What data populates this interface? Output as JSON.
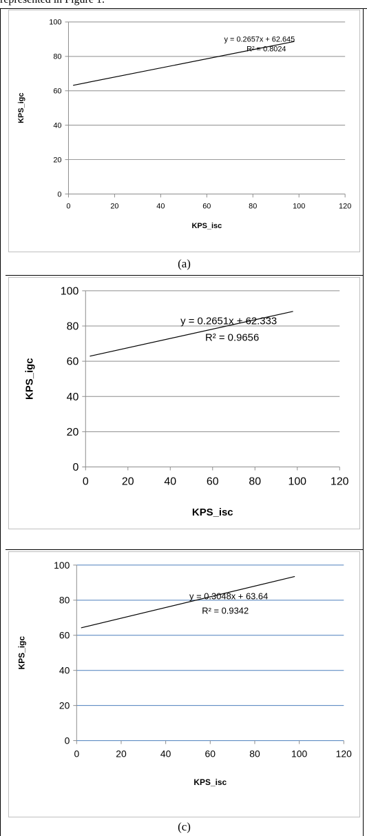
{
  "intro_text": "represented in Figure 1.",
  "chart_data": [
    {
      "type": "line",
      "title": "",
      "xlabel": "KPS_isc",
      "ylabel": "KPS_igc",
      "xlim": [
        0,
        120
      ],
      "ylim": [
        0,
        100
      ],
      "xticks": [
        "0",
        "20",
        "40",
        "60",
        "80",
        "100",
        "120"
      ],
      "yticks": [
        "0",
        "20",
        "40",
        "60",
        "80",
        "100"
      ],
      "series": [
        {
          "x": [
            2,
            98
          ],
          "y": [
            63.18,
            88.68
          ]
        }
      ],
      "equation": "y = 0.2657x + 62.645",
      "r2_text": "R² = 0.8024",
      "gridline_color": "#8c8c8c",
      "caption": "(a)"
    },
    {
      "type": "line",
      "title": "",
      "xlabel": "KPS_isc",
      "ylabel": "KPS_igc",
      "xlim": [
        0,
        120
      ],
      "ylim": [
        0,
        100
      ],
      "xticks": [
        "0",
        "20",
        "40",
        "60",
        "80",
        "100",
        "120"
      ],
      "yticks": [
        "0",
        "20",
        "40",
        "60",
        "80",
        "100"
      ],
      "series": [
        {
          "x": [
            2,
            98
          ],
          "y": [
            62.86,
            88.31
          ]
        }
      ],
      "equation": "y = 0.2651x + 62.333",
      "r2_text": "R² = 0.9656",
      "gridline_color": "#8c8c8c",
      "caption": ""
    },
    {
      "type": "line",
      "title": "",
      "xlabel": "KPS_isc",
      "ylabel": "KPS_igc",
      "xlim": [
        0,
        120
      ],
      "ylim": [
        0,
        100
      ],
      "xticks": [
        "0",
        "20",
        "40",
        "60",
        "80",
        "100",
        "120"
      ],
      "yticks": [
        "0",
        "20",
        "40",
        "60",
        "80",
        "100"
      ],
      "series": [
        {
          "x": [
            2,
            98
          ],
          "y": [
            64.25,
            93.51
          ]
        }
      ],
      "equation": "y = 0.3048x + 63.64",
      "r2_text": "R² = 0.9342",
      "gridline_color": "#4a7ebb",
      "caption": "(c)"
    }
  ]
}
